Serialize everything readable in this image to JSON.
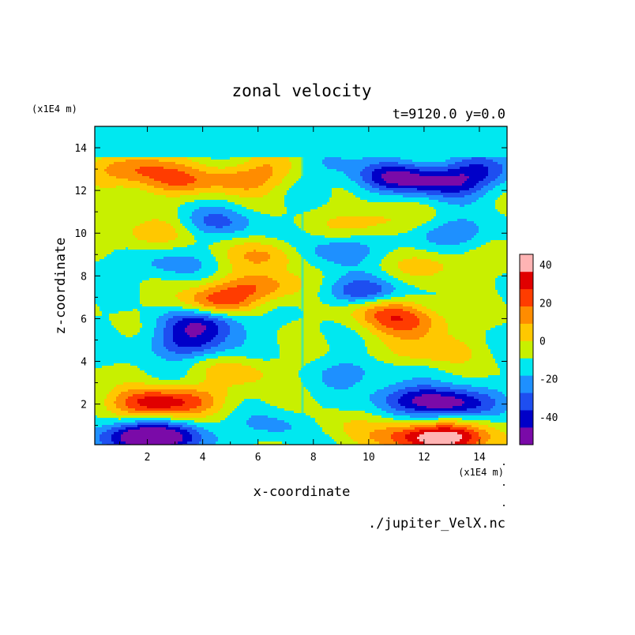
{
  "chart_data": {
    "type": "heatmap",
    "title": "zonal velocity",
    "subtitle": "t=9120.0 y=0.0",
    "xlabel": "x-coordinate",
    "ylabel": "z-coordinate",
    "x_unit": "(x1E4 m)",
    "y_unit": "(x1E4 m)",
    "source": "./jupiter_VelX.nc",
    "xlim": [
      0.1,
      15.0
    ],
    "ylim": [
      0.1,
      15.0
    ],
    "x_ticks": [
      2,
      4,
      6,
      8,
      10,
      12,
      14
    ],
    "y_ticks": [
      2,
      4,
      6,
      8,
      10,
      12,
      14
    ],
    "colorbar": {
      "levels": [
        -50,
        -40,
        -30,
        -20,
        -10,
        0,
        10,
        20,
        30,
        40,
        50
      ],
      "tick_labels": [
        -40,
        -20,
        0,
        20,
        40
      ],
      "colors": [
        "#7a0aa8",
        "#0000c8",
        "#1e4ef0",
        "#1e90ff",
        "#00e8f0",
        "#c8f000",
        "#ffc800",
        "#ff8c00",
        "#ff3c00",
        "#e00000",
        "#ffb4b4"
      ]
    },
    "features": [
      {
        "x": 2.0,
        "z": 2.0,
        "value": 35
      },
      {
        "x": 3.5,
        "z": 2.2,
        "value": 25
      },
      {
        "x": 1.5,
        "z": 0.4,
        "value": -45
      },
      {
        "x": 3.0,
        "z": 0.5,
        "value": -30
      },
      {
        "x": 13.0,
        "z": 0.4,
        "value": 48
      },
      {
        "x": 11.5,
        "z": 0.5,
        "value": 30
      },
      {
        "x": 13.0,
        "z": 2.0,
        "value": -42
      },
      {
        "x": 11.5,
        "z": 2.3,
        "value": -25
      },
      {
        "x": 3.0,
        "z": 12.4,
        "value": 25
      },
      {
        "x": 5.5,
        "z": 12.5,
        "value": 22
      },
      {
        "x": 11.0,
        "z": 12.6,
        "value": -38
      },
      {
        "x": 13.0,
        "z": 12.3,
        "value": -30
      },
      {
        "x": 6.0,
        "z": 7.5,
        "value": 28
      },
      {
        "x": 4.5,
        "z": 6.8,
        "value": 30
      },
      {
        "x": 9.8,
        "z": 7.2,
        "value": -30
      },
      {
        "x": 10.5,
        "z": 6.5,
        "value": 25
      },
      {
        "x": 3.5,
        "z": 4.8,
        "value": -30
      },
      {
        "x": 12.0,
        "z": 4.5,
        "value": 20
      },
      {
        "x": 4.0,
        "z": 5.8,
        "value": -35
      },
      {
        "x": 11.5,
        "z": 5.8,
        "value": 28
      },
      {
        "x": 2.0,
        "z": 10.0,
        "value": 18
      },
      {
        "x": 13.0,
        "z": 10.0,
        "value": -18
      },
      {
        "x": 4.5,
        "z": 10.5,
        "value": -20
      },
      {
        "x": 10.0,
        "z": 10.5,
        "value": 18
      },
      {
        "x": 6.5,
        "z": 9.0,
        "value": 22
      },
      {
        "x": 8.8,
        "z": 9.2,
        "value": -22
      },
      {
        "x": 5.5,
        "z": 3.5,
        "value": 15
      },
      {
        "x": 9.5,
        "z": 3.5,
        "value": -15
      },
      {
        "x": 2.5,
        "z": 8.5,
        "value": -15
      },
      {
        "x": 12.5,
        "z": 8.5,
        "value": 15
      },
      {
        "x": 7.0,
        "z": 1.0,
        "value": -15
      },
      {
        "x": 8.5,
        "z": 1.0,
        "value": 10
      },
      {
        "x": 1.5,
        "z": 13.0,
        "value": 30
      },
      {
        "x": 14.0,
        "z": 13.0,
        "value": -25
      },
      {
        "x": 7.0,
        "z": 13.2,
        "value": 20
      },
      {
        "x": 8.2,
        "z": 13.2,
        "value": -20
      }
    ]
  }
}
